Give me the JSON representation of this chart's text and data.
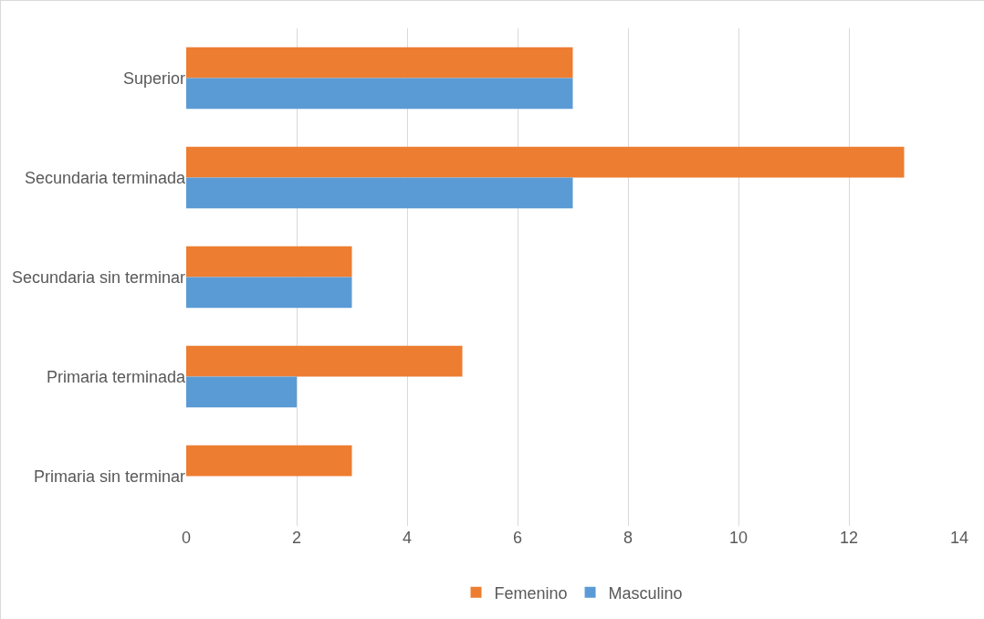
{
  "chart_data": {
    "type": "bar",
    "orientation": "horizontal",
    "categories": [
      "Superior",
      "Secundaria terminada",
      "Secundaria sin terminar",
      "Primaria terminada",
      "Primaria sin terminar"
    ],
    "series": [
      {
        "name": "Femenino",
        "color": "#ed7d31",
        "values": [
          7,
          13,
          3,
          5,
          3
        ]
      },
      {
        "name": "Masculino",
        "color": "#5b9bd5",
        "values": [
          7,
          7,
          3,
          2,
          0
        ]
      }
    ],
    "xlim": [
      0,
      14
    ],
    "xticks": [
      0,
      2,
      4,
      6,
      8,
      10,
      12,
      14
    ],
    "grid": "x",
    "legend": "bottom"
  }
}
